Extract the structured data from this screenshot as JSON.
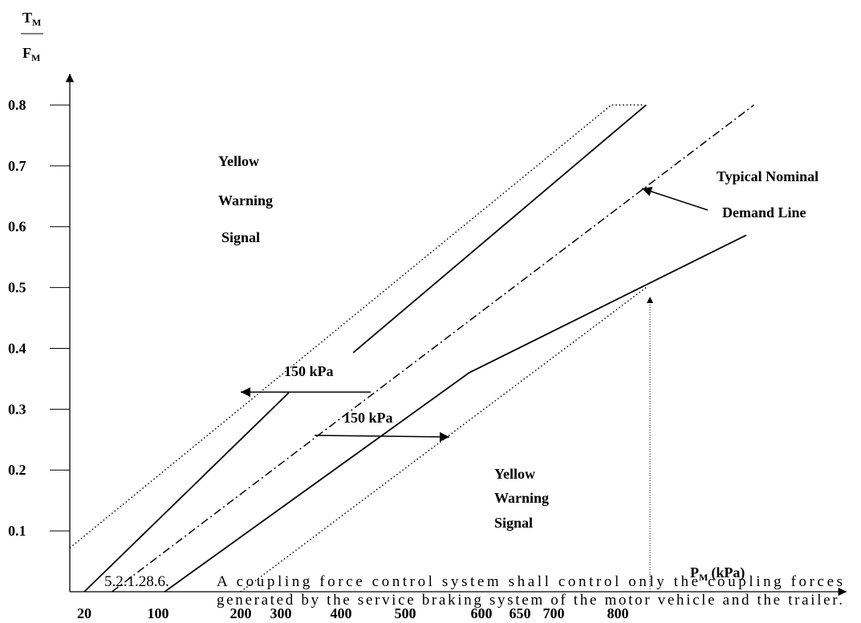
{
  "chart_data": {
    "type": "line",
    "ylabel_top": "T",
    "ylabel_top_sub": "M",
    "ylabel_bottom": "F",
    "ylabel_bottom_sub": "M",
    "xlabel": "P",
    "xlabel_sub": "M",
    "xlabel_unit": "(kPa)",
    "xlim": [
      4,
      1150
    ],
    "xticks": [
      20,
      100,
      200,
      300,
      400,
      500,
      600,
      650,
      700,
      800
    ],
    "ylim": [
      0,
      0.85
    ],
    "yticks": [
      0.1,
      0.2,
      0.3,
      0.4,
      0.5,
      0.6,
      0.7,
      0.8
    ],
    "series": [
      {
        "style": "dotted",
        "color": "#000000",
        "x": [
          4,
          790,
          838
        ],
        "values": [
          0.072,
          0.8,
          0.8
        ]
      },
      {
        "style": "solid",
        "color": "#000000",
        "x": [
          20,
          313,
          null,
          419,
          844
        ],
        "values": [
          0,
          0.327,
          null,
          0.393,
          0.8
        ]
      },
      {
        "style": "dashdot",
        "color": "#000000",
        "x": [
          50,
          1012
        ],
        "values": [
          0,
          0.8
        ]
      },
      {
        "style": "solid",
        "color": "#000000",
        "x": [
          108,
          584,
          1000
        ],
        "values": [
          0,
          0.36,
          0.586
        ]
      },
      {
        "style": "dotted",
        "color": "#000000",
        "x": [
          200,
          844
        ],
        "values": [
          0,
          0.5
        ]
      }
    ],
    "annotations": {
      "upper_signal": [
        "Yellow",
        "Warning",
        "Signal"
      ],
      "lower_signal": [
        "Yellow",
        "Warning",
        "Signal"
      ],
      "nominal": [
        "Typical Nominal",
        "Demand Line"
      ],
      "upper_pressure": "150 kPa",
      "lower_pressure": "150 kPa"
    }
  },
  "overlay_text": {
    "number": "5.2.1.28.6.",
    "lines": [
      "A coupling force control system shall control only the coupling forces",
      "generated by the service braking system of the motor vehicle and the trailer."
    ]
  }
}
